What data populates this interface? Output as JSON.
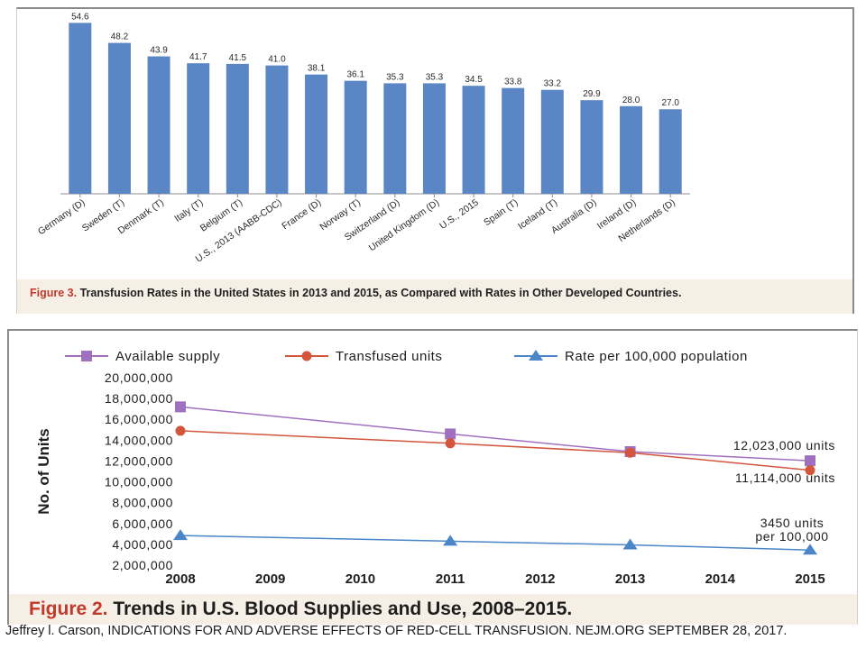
{
  "chart_data": [
    {
      "type": "bar",
      "categories": [
        "Germany (D)",
        "Sweden (T)",
        "Denmark (T)",
        "Italy (T)",
        "Belgium (T)",
        "U.S., 2013 (AABB-CDC)",
        "France (D)",
        "Norway (T)",
        "Switzerland (D)",
        "United Kingdom (D)",
        "U.S., 2015",
        "Spain (T)",
        "Iceland (T)",
        "Australia (D)",
        "Ireland (D)",
        "Netherlands (D)"
      ],
      "values": [
        54.6,
        48.2,
        43.9,
        41.7,
        41.5,
        41.0,
        38.1,
        36.1,
        35.3,
        35.3,
        34.5,
        33.8,
        33.2,
        29.9,
        28.0,
        27.0
      ],
      "value_labels": [
        "54.6",
        "48.2",
        "43.9",
        "41.7",
        "41.5",
        "41.0",
        "38.1",
        "36.1",
        "35.3",
        "35.3",
        "34.5",
        "33.8",
        "33.2",
        "29.9",
        "28.0",
        "27.0"
      ],
      "ylim": [
        0,
        55
      ],
      "bar_color": "#5b86c5",
      "grid": false,
      "caption_label": "Figure 3.",
      "caption_text": "Transfusion Rates in the United States in 2013 and 2015, as Compared with Rates in Other Developed Countries."
    },
    {
      "type": "line",
      "x_ticks": [
        "2008",
        "2009",
        "2010",
        "2011",
        "2012",
        "2013",
        "2014",
        "2015"
      ],
      "ylabel": "No. of Units",
      "ylim": [
        2000000,
        20000000
      ],
      "y_ticks": [
        2000000,
        4000000,
        6000000,
        8000000,
        10000000,
        12000000,
        14000000,
        16000000,
        18000000,
        20000000
      ],
      "y_tick_labels": [
        "2,000,000",
        "4,000,000",
        "6,000,000",
        "8,000,000",
        "10,000,000",
        "12,000,000",
        "14,000,000",
        "16,000,000",
        "18,000,000",
        "20,000,000"
      ],
      "legend_position": "top",
      "series": [
        {
          "name": "Available supply",
          "marker": "square",
          "color": "#a070c0",
          "x": [
            2008,
            2011,
            2013,
            2015
          ],
          "values": [
            17200000,
            14600000,
            12900000,
            12023000
          ]
        },
        {
          "name": "Transfused units",
          "marker": "circle",
          "color": "#d2553c",
          "x": [
            2008,
            2011,
            2013,
            2015
          ],
          "values": [
            14900000,
            13700000,
            12800000,
            11114000
          ]
        },
        {
          "name": "Rate per 100,000 population",
          "marker": "triangle",
          "color": "#4a86c8",
          "x": [
            2008,
            2011,
            2013,
            2015
          ],
          "values": [
            4850000,
            4300000,
            3950000,
            3450000
          ]
        }
      ],
      "annotations": [
        {
          "text": "12,023,000 units"
        },
        {
          "text": "11,114,000 units"
        },
        {
          "text": "3450 units"
        },
        {
          "text": "per 100,000"
        }
      ],
      "caption_label": "Figure 2.",
      "caption_text": "Trends in U.S. Blood Supplies and Use, 2008–2015."
    }
  ],
  "footer": "Jeffrey l. Carson, INDICATIONS FOR AND ADVERSE EFFECTS OF RED-CELL TRANSFUSION.  NEJM.ORG SEPTEMBER 28, 2017."
}
